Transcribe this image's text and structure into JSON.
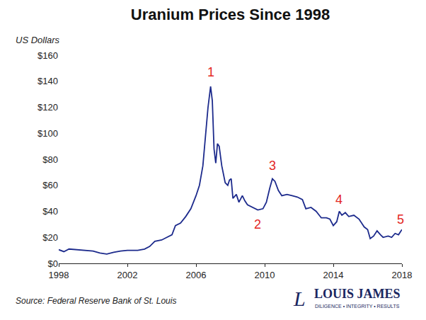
{
  "chart_data": {
    "type": "line",
    "title": "Uranium Prices Since 1998",
    "y_label": "US Dollars",
    "source": "Source: Federal Reserve Bank of St. Louis",
    "logo": {
      "mark": "L",
      "name": "LOUIS JAMES",
      "tagline": "DILIGENCE • INTEGRITY • RESULTS"
    },
    "color": "#1c2a8c",
    "grid": false,
    "x": [
      1998.0,
      1998.3,
      1998.6,
      1999.0,
      1999.5,
      2000.0,
      2000.4,
      2000.8,
      2001.2,
      2001.6,
      2002.0,
      2002.6,
      2003.0,
      2003.3,
      2003.6,
      2004.0,
      2004.3,
      2004.6,
      2004.8,
      2005.1,
      2005.4,
      2005.7,
      2006.0,
      2006.2,
      2006.4,
      2006.55,
      2006.7,
      2006.85,
      2006.95,
      2007.05,
      2007.15,
      2007.25,
      2007.35,
      2007.5,
      2007.7,
      2007.85,
      2007.95,
      2008.05,
      2008.15,
      2008.35,
      2008.5,
      2008.7,
      2008.85,
      2009.0,
      2009.3,
      2009.6,
      2009.9,
      2010.1,
      2010.3,
      2010.45,
      2010.6,
      2010.8,
      2011.0,
      2011.3,
      2011.6,
      2011.9,
      2012.2,
      2012.4,
      2012.7,
      2013.0,
      2013.3,
      2013.6,
      2013.8,
      2014.0,
      2014.2,
      2014.35,
      2014.5,
      2014.7,
      2014.9,
      2015.2,
      2015.5,
      2015.8,
      2016.0,
      2016.15,
      2016.35,
      2016.55,
      2016.75,
      2016.9,
      2017.2,
      2017.4,
      2017.6,
      2017.8,
      2018.0
    ],
    "values": [
      10.5,
      9,
      11,
      10.5,
      10,
      9.5,
      8,
      7.2,
      8.5,
      9.5,
      10,
      10,
      11,
      13,
      17,
      18,
      20,
      22,
      29,
      31,
      36,
      42,
      52,
      60,
      75,
      100,
      120,
      136,
      125,
      88,
      77,
      92,
      90,
      75,
      62,
      60,
      64,
      65,
      50,
      53,
      47,
      52,
      48,
      45,
      43,
      41,
      42,
      47,
      58,
      65,
      63,
      56,
      52,
      53,
      52,
      51,
      49,
      42,
      43,
      40,
      35,
      35,
      34,
      29,
      32,
      40,
      37,
      39,
      36,
      37,
      34,
      28,
      26,
      19,
      21,
      25,
      22,
      20,
      21,
      20,
      23,
      22,
      26
    ],
    "xlim": [
      1998,
      2018
    ],
    "xticks": [
      1998,
      2002,
      2006,
      2010,
      2014,
      2018
    ],
    "ylim": [
      0,
      160
    ],
    "yticks": [
      {
        "value": 0,
        "label": "$0"
      },
      {
        "value": 20,
        "label": "$20"
      },
      {
        "value": 40,
        "label": "$40"
      },
      {
        "value": 60,
        "label": "$60"
      },
      {
        "value": 80,
        "label": "$80"
      },
      {
        "value": 100,
        "label": "$100"
      },
      {
        "value": 120,
        "label": "$120"
      },
      {
        "value": 140,
        "label": "$140"
      },
      {
        "value": 160,
        "label": "$160"
      }
    ],
    "annotations": [
      {
        "text": "1",
        "x": 2006.85,
        "y": 147,
        "color": "#e3261f"
      },
      {
        "text": "2",
        "x": 2009.6,
        "y": 30,
        "color": "#e3261f"
      },
      {
        "text": "3",
        "x": 2010.45,
        "y": 75,
        "color": "#e3261f"
      },
      {
        "text": "4",
        "x": 2014.35,
        "y": 49,
        "color": "#e3261f"
      },
      {
        "text": "5",
        "x": 2017.9,
        "y": 34,
        "color": "#e3261f"
      }
    ]
  }
}
